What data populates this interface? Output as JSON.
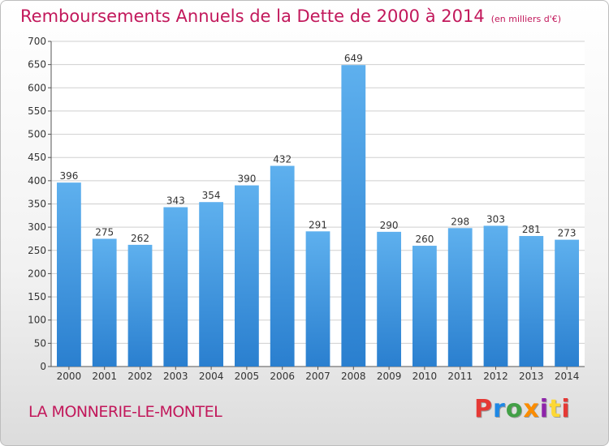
{
  "chart_data": {
    "type": "bar",
    "title": "Remboursements Annuels de la Dette de 2000 à 2014",
    "unit": "(en milliers d'€)",
    "categories": [
      "2000",
      "2001",
      "2002",
      "2003",
      "2004",
      "2005",
      "2006",
      "2007",
      "2008",
      "2009",
      "2010",
      "2011",
      "2012",
      "2013",
      "2014"
    ],
    "values": [
      396,
      275,
      262,
      343,
      354,
      390,
      432,
      291,
      649,
      290,
      260,
      298,
      303,
      281,
      273
    ],
    "ylim": [
      0,
      700
    ],
    "yticks": [
      0,
      50,
      100,
      150,
      200,
      250,
      300,
      350,
      400,
      450,
      500,
      550,
      600,
      650,
      700
    ],
    "grid": true,
    "bar_color": "#4a9be0"
  },
  "footer": {
    "place": "LA MONNERIE-LE-MONTEL",
    "logo": "Proxiti"
  },
  "colors": {
    "title": "#c2185b",
    "logo_letters": [
      "#e53935",
      "#1e88e5",
      "#43a047",
      "#fb8c00",
      "#8e24aa",
      "#fdd835",
      "#e53935"
    ]
  }
}
